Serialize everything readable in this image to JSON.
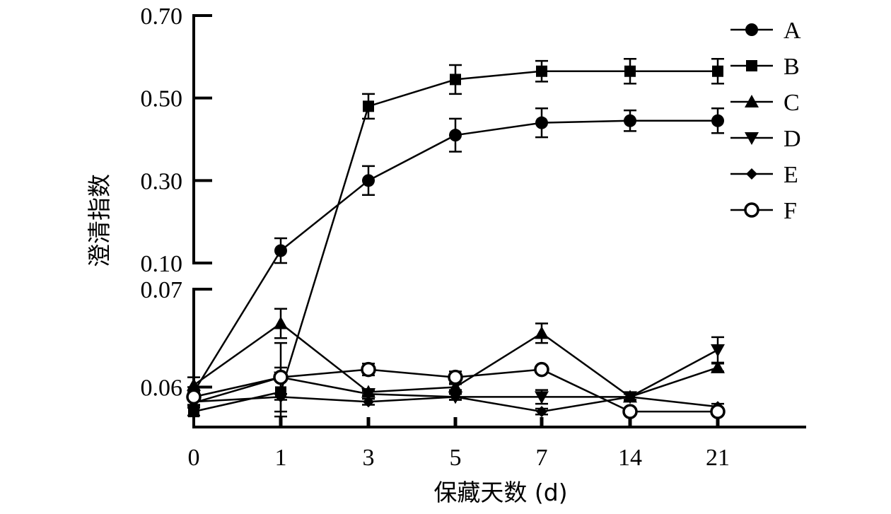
{
  "chart_data": {
    "type": "line",
    "title": "",
    "xlabel": "保藏天数 (d)",
    "ylabel": "澄清指数",
    "x_categories": [
      "0",
      "1",
      "3",
      "5",
      "7",
      "14",
      "21"
    ],
    "y_axis": {
      "broken": true,
      "lower_range": [
        0.0565,
        0.07
      ],
      "upper_range": [
        0.1,
        0.7
      ],
      "lower_ticks": [
        "0.06",
        "0.07"
      ],
      "upper_ticks": [
        "0.10",
        "0.30",
        "0.50",
        "0.70"
      ],
      "lower_tick_values": [
        0.06,
        0.07
      ],
      "upper_tick_values": [
        0.1,
        0.3,
        0.5,
        0.7
      ]
    },
    "legend_position": "top-right",
    "grid": false,
    "series": [
      {
        "name": "A",
        "marker": "circle",
        "values": [
          0.0595,
          0.13,
          0.3,
          0.41,
          0.44,
          0.445,
          0.445
        ],
        "errors": [
          0.0005,
          0.03,
          0.035,
          0.04,
          0.035,
          0.025,
          0.03
        ]
      },
      {
        "name": "B",
        "marker": "square",
        "values": [
          0.0575,
          0.0595,
          0.48,
          0.545,
          0.565,
          0.565,
          0.565
        ],
        "errors": [
          0.0004,
          0.0025,
          0.03,
          0.035,
          0.025,
          0.03,
          0.03
        ]
      },
      {
        "name": "C",
        "marker": "triangle-up",
        "values": [
          0.0602,
          0.0665,
          0.0595,
          0.06,
          0.0655,
          0.059,
          0.062
        ],
        "errors": [
          0.0008,
          0.0015,
          0.0003,
          0.0003,
          0.001,
          0.0003,
          0.0004
        ]
      },
      {
        "name": "D",
        "marker": "triangle-down",
        "values": [
          0.0584,
          0.061,
          0.0593,
          0.059,
          0.059,
          0.059,
          0.0638
        ],
        "errors": [
          0.0003,
          0.0035,
          0.0003,
          0.0003,
          0.0007,
          0.0003,
          0.0013
        ]
      },
      {
        "name": "E",
        "marker": "diamond",
        "values": [
          0.0585,
          0.059,
          0.0585,
          0.059,
          0.0575,
          0.059,
          0.058
        ],
        "errors": [
          0.0003,
          0.0003,
          0.0003,
          0.0003,
          0.0003,
          0.0003,
          0.0003
        ]
      },
      {
        "name": "F",
        "marker": "circle-open",
        "values": [
          0.059,
          0.061,
          0.0618,
          0.061,
          0.0618,
          0.0575,
          0.0575
        ],
        "errors": [
          0.0003,
          0.0003,
          0.0006,
          0.0006,
          0.0003,
          0.0003,
          0.0003
        ]
      }
    ]
  }
}
